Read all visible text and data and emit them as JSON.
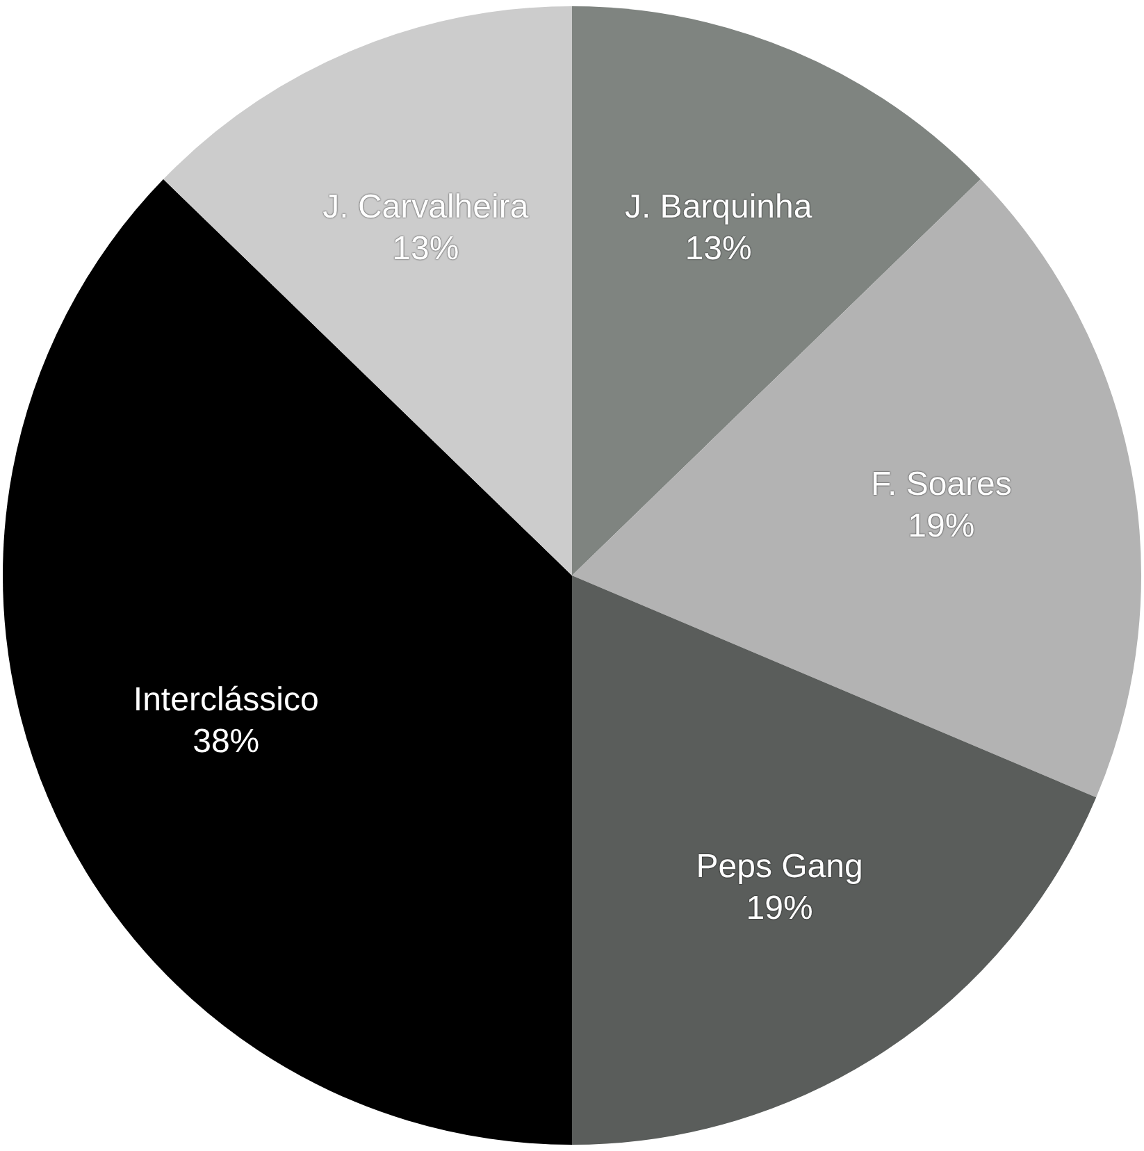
{
  "chart_data": {
    "type": "pie",
    "categories": [
      "J. Barquinha",
      "F. Soares",
      "Peps Gang",
      "Interclássico",
      "J. Carvalheira"
    ],
    "values": [
      13,
      19,
      19,
      38,
      13
    ],
    "value_labels": [
      "13%",
      "19%",
      "19%",
      "38%",
      "13%"
    ],
    "colors": [
      "#7f8480",
      "#b3b3b3",
      "#5a5d5b",
      "#000000",
      "#cccccc"
    ],
    "legend": false
  }
}
